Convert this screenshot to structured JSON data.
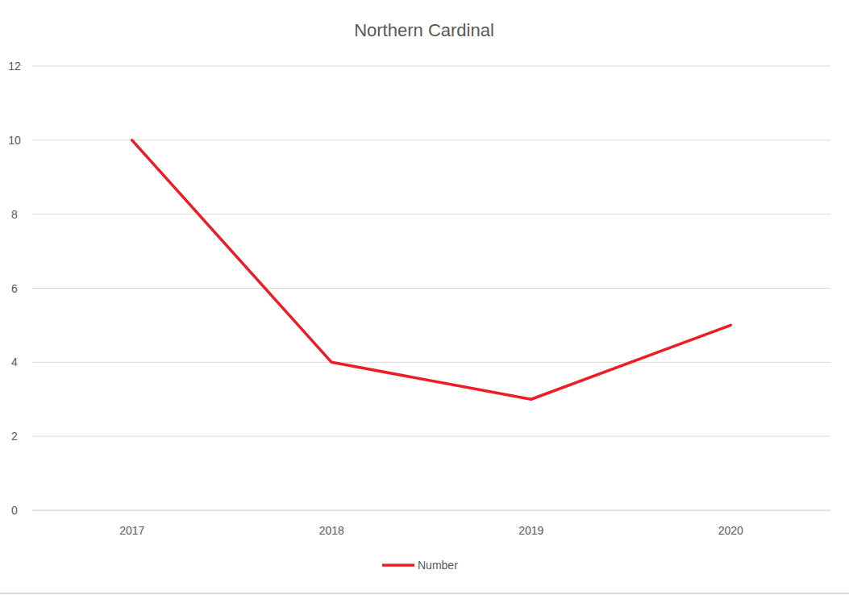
{
  "chart_data": {
    "type": "line",
    "title": "Northern Cardinal",
    "categories": [
      "2017",
      "2018",
      "2019",
      "2020"
    ],
    "series": [
      {
        "name": "Number",
        "color": "#ee1c25",
        "values": [
          10,
          4,
          3,
          5
        ]
      }
    ],
    "ylim": [
      0,
      12
    ],
    "yticks": [
      0,
      2,
      4,
      6,
      8,
      10,
      12
    ],
    "grid": true,
    "legend": "bottom"
  }
}
